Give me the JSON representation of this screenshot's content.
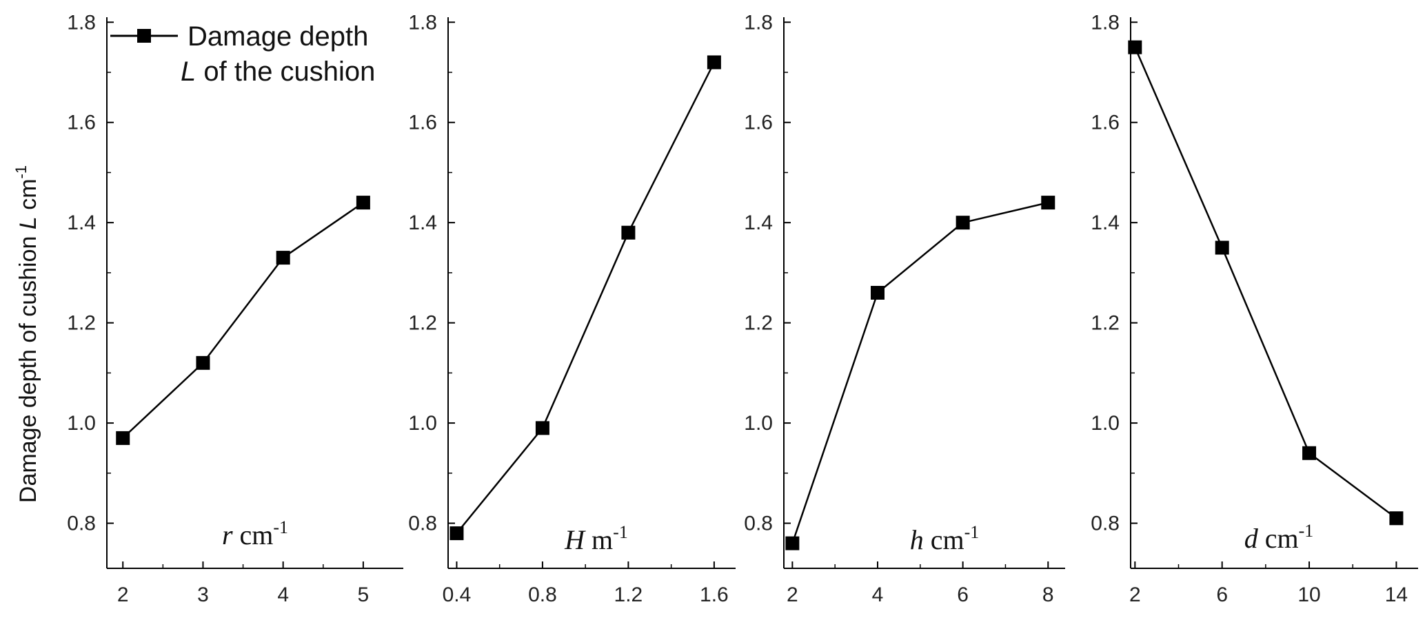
{
  "figure": {
    "ylabel_parts": [
      "Damage depth of cushion ",
      "L",
      " cm",
      "-1"
    ],
    "legend": {
      "line1": "Damage depth",
      "line2_var": "L",
      "line2_rest": " of the cushion"
    }
  },
  "chart_data": [
    {
      "type": "line",
      "x": [
        2,
        3,
        4,
        5
      ],
      "y": [
        0.97,
        1.12,
        1.33,
        1.44
      ],
      "xticks": [
        "2",
        "3",
        "4",
        "5"
      ],
      "yticks": [
        "0.8",
        "1.0",
        "1.2",
        "1.4",
        "1.6",
        "1.8"
      ],
      "xlim": [
        1.8,
        5.5
      ],
      "ylim": [
        0.71,
        1.81
      ],
      "xlabel_var": "r",
      "xlabel_unit": " cm",
      "xlabel_exp": "-1",
      "marker": "square",
      "color": "#000000"
    },
    {
      "type": "line",
      "x": [
        0.4,
        0.8,
        1.2,
        1.6
      ],
      "y": [
        0.78,
        0.99,
        1.38,
        1.72
      ],
      "xticks": [
        "0.4",
        "0.8",
        "1.2",
        "1.6"
      ],
      "yticks": [
        "0.8",
        "1.0",
        "1.2",
        "1.4",
        "1.6",
        "1.8"
      ],
      "xlim": [
        0.36,
        1.7
      ],
      "ylim": [
        0.71,
        1.81
      ],
      "xlabel_var": "H",
      "xlabel_unit": " m",
      "xlabel_exp": "-1",
      "marker": "square",
      "color": "#000000"
    },
    {
      "type": "line",
      "x": [
        2,
        4,
        6,
        8
      ],
      "y": [
        0.76,
        1.26,
        1.4,
        1.44
      ],
      "xticks": [
        "2",
        "4",
        "6",
        "8"
      ],
      "yticks": [
        "0.8",
        "1.0",
        "1.2",
        "1.4",
        "1.6",
        "1.8"
      ],
      "xlim": [
        1.8,
        8.4
      ],
      "ylim": [
        0.71,
        1.81
      ],
      "xlabel_var": "h",
      "xlabel_unit": " cm",
      "xlabel_exp": "-1",
      "marker": "square",
      "color": "#000000"
    },
    {
      "type": "line",
      "x": [
        2,
        6,
        10,
        14
      ],
      "y": [
        1.75,
        1.35,
        0.94,
        0.81
      ],
      "xticks": [
        "2",
        "6",
        "10",
        "14"
      ],
      "yticks": [
        "0.8",
        "1.0",
        "1.2",
        "1.4",
        "1.6",
        "1.8"
      ],
      "xlim": [
        1.8,
        15.0
      ],
      "ylim": [
        0.71,
        1.81
      ],
      "xlabel_var": "d",
      "xlabel_unit": " cm",
      "xlabel_exp": "-1",
      "marker": "square",
      "color": "#000000"
    }
  ]
}
